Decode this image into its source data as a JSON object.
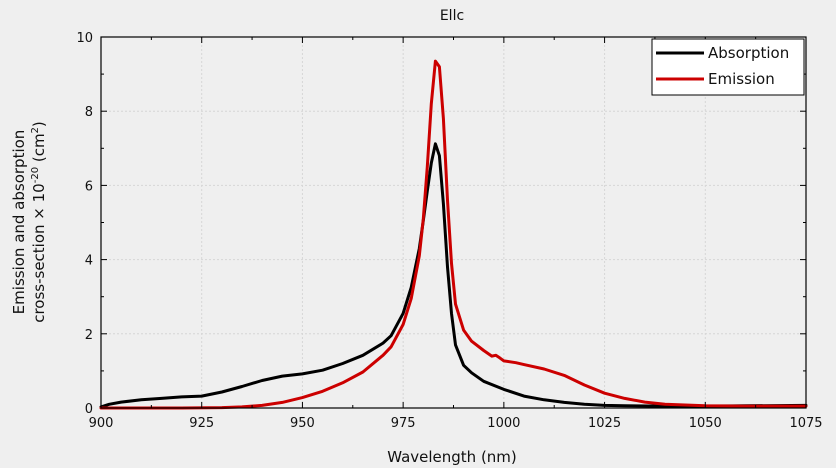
{
  "chart_data": {
    "type": "line",
    "title": "Ellc",
    "xlabel": "Wavelength (nm)",
    "ylabel_line1": "Emission and absorption",
    "ylabel_line2_prefix": "cross-section × 10",
    "ylabel_exp1": "-20",
    "ylabel_mid": " (cm",
    "ylabel_exp2": "2",
    "ylabel_end": ")",
    "xlim": [
      900,
      1075
    ],
    "ylim": [
      0,
      10
    ],
    "xticks": [
      900,
      925,
      950,
      975,
      1000,
      1025,
      1050,
      1075
    ],
    "yticks": [
      0,
      2,
      4,
      6,
      8,
      10
    ],
    "grid": true,
    "legend_position": "top-right",
    "series": [
      {
        "name": "Absorption",
        "color": "#000000",
        "x": [
          900,
          902,
          905,
          910,
          915,
          920,
          925,
          930,
          935,
          940,
          945,
          950,
          955,
          960,
          965,
          970,
          972,
          975,
          977,
          979,
          980,
          981,
          982,
          983,
          984,
          985,
          986,
          987,
          988,
          990,
          992,
          995,
          1000,
          1005,
          1010,
          1015,
          1020,
          1025,
          1030,
          1040,
          1050,
          1060,
          1075
        ],
        "y": [
          0.03,
          0.1,
          0.16,
          0.22,
          0.26,
          0.3,
          0.32,
          0.43,
          0.58,
          0.74,
          0.86,
          0.92,
          1.02,
          1.2,
          1.42,
          1.75,
          1.95,
          2.55,
          3.25,
          4.3,
          5.05,
          5.85,
          6.6,
          7.12,
          6.8,
          5.5,
          3.8,
          2.55,
          1.7,
          1.15,
          0.95,
          0.72,
          0.5,
          0.32,
          0.22,
          0.15,
          0.1,
          0.07,
          0.06,
          0.05,
          0.05,
          0.06,
          0.07
        ]
      },
      {
        "name": "Emission",
        "color": "#cc0000",
        "x": [
          900,
          920,
          930,
          935,
          940,
          945,
          950,
          955,
          960,
          965,
          970,
          972,
          975,
          977,
          979,
          980,
          981,
          982,
          983,
          984,
          985,
          986,
          987,
          988,
          990,
          992,
          995,
          997,
          998,
          999,
          1000,
          1003,
          1005,
          1010,
          1015,
          1020,
          1025,
          1030,
          1035,
          1040,
          1050,
          1060,
          1075
        ],
        "y": [
          0.0,
          0.0,
          0.01,
          0.03,
          0.07,
          0.15,
          0.28,
          0.45,
          0.68,
          0.97,
          1.42,
          1.65,
          2.25,
          2.95,
          4.1,
          5.1,
          6.5,
          8.2,
          9.35,
          9.2,
          7.8,
          5.6,
          3.9,
          2.8,
          2.1,
          1.8,
          1.55,
          1.4,
          1.42,
          1.35,
          1.27,
          1.22,
          1.17,
          1.05,
          0.88,
          0.62,
          0.4,
          0.26,
          0.16,
          0.1,
          0.06,
          0.05,
          0.05
        ]
      }
    ]
  }
}
